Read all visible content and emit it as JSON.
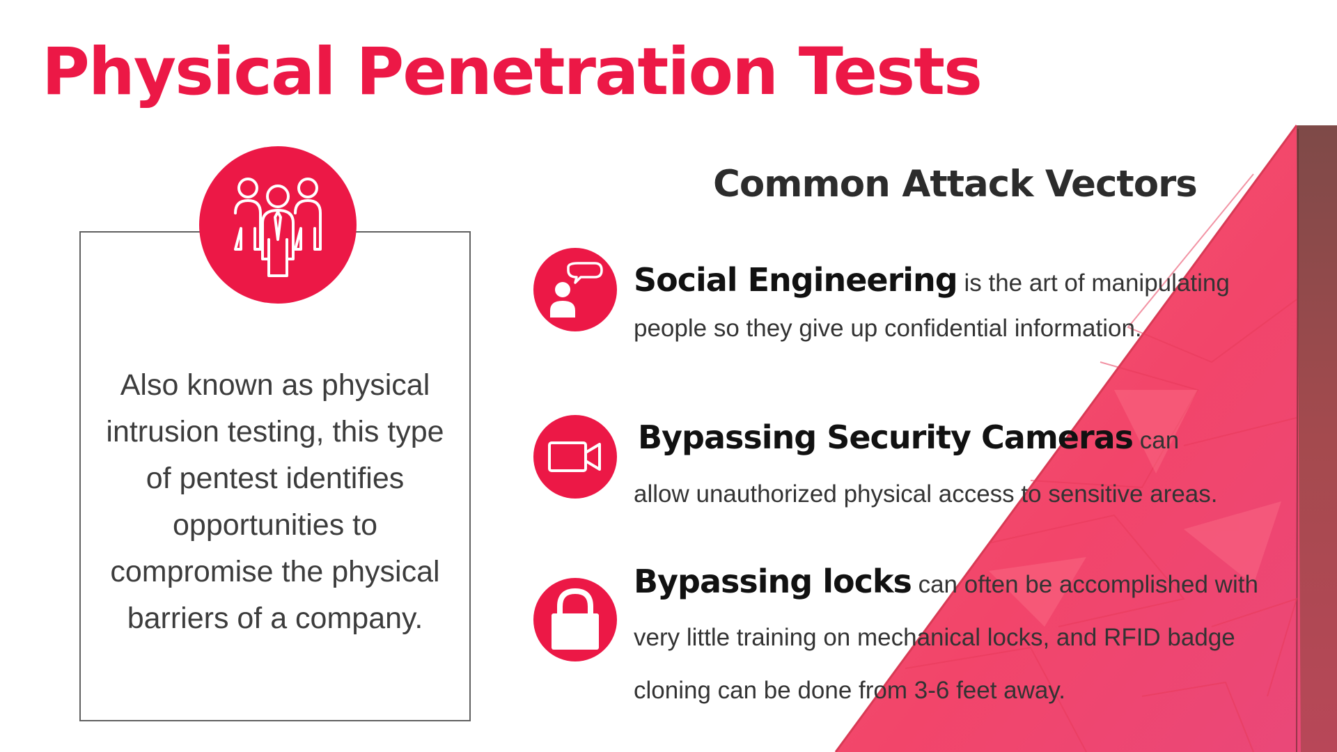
{
  "title": "Physical Penetration Tests",
  "intro": {
    "text": "Also known as physical intrusion testing, this type of pentest identifies opportunities to compromise the physical barriers of a company.",
    "icon": "team-people-icon"
  },
  "section_heading": "Common Attack Vectors",
  "vectors": [
    {
      "name": "Social Engineering",
      "description": "is the art of manipulating people so they give up confidential information.",
      "icon": "person-speech-bubble-icon"
    },
    {
      "name": "Bypassing Security Cameras",
      "description": "can allow unauthorized physical access to sensitive areas.",
      "icon": "video-camera-icon"
    },
    {
      "name": "Bypassing locks",
      "description": "can often be accomplished with very little training on mechanical locks, and RFID badge cloning can be done from 3-6 feet away.",
      "icon": "padlock-icon"
    }
  ],
  "colors": {
    "accent": "#EC1846",
    "pyramid_light": "#F4536F",
    "pyramid_dark": "#8B4A44",
    "heading": "#2C2C2C",
    "body_text": "#3C3C3C"
  }
}
